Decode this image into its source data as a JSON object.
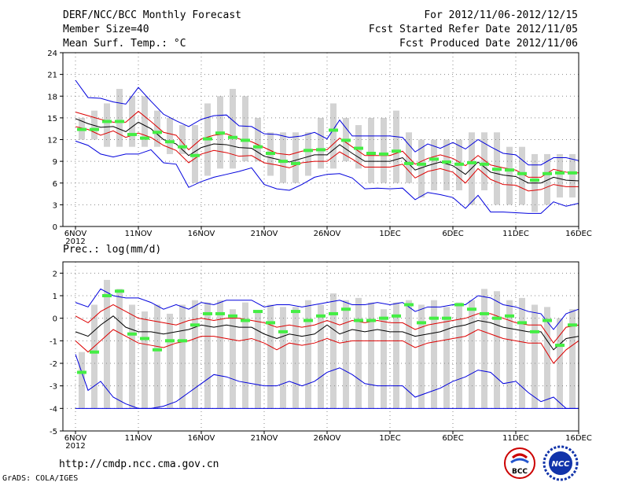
{
  "header": {
    "title": "DERF/NCC/BCC Monthly Forecast",
    "member_size": "Member Size=40",
    "variable": "Mean Surf. Temp.: °C",
    "forecast_period": "For 2012/11/06-2012/12/15",
    "fcst_started": "Fcst Started Refer Date 2012/11/05",
    "fcst_produced": "Fcst Produced Date 2012/11/06"
  },
  "footer": {
    "url": "http://cmdp.ncc.cma.gov.cn",
    "credit": "GrADS: COLA/IGES",
    "logo_left_text": "BCC",
    "logo_right_text": "NCC"
  },
  "colors": {
    "ensemble_mean": "#000000",
    "spread_inner": "#dd0000",
    "spread_outer": "#0000dd",
    "climatology_marker": "#44ee44",
    "member_bar": "#d3d3d3",
    "grid": "#888888"
  },
  "chart_data": [
    {
      "type": "line",
      "title": "Mean Surf. Temp.: °C",
      "ylabel": "°C",
      "ylim": [
        0,
        24
      ],
      "yticks": [
        0,
        3,
        6,
        9,
        12,
        15,
        18,
        21,
        24
      ],
      "ytick_labels": [
        "0",
        "3",
        "6",
        "9",
        "12",
        "15",
        "18",
        "21",
        "24"
      ],
      "x_days": 40,
      "x_tick_day": [
        0,
        5,
        10,
        15,
        20,
        25,
        30,
        35,
        40
      ],
      "x_tick_labels": [
        "6NOV",
        "11NOV",
        "16NOV",
        "21NOV",
        "26NOV",
        "1DEC",
        "6DEC",
        "11DEC",
        "16DEC"
      ],
      "x_year_label": "2012",
      "series": [
        {
          "name": "max",
          "role": "outer",
          "values": [
            20.2,
            17.8,
            17.7,
            17.2,
            16.9,
            19.2,
            17.3,
            15.5,
            14.6,
            13.8,
            14.8,
            15.3,
            15.4,
            13.9,
            13.8,
            12.8,
            12.7,
            12.3,
            12.5,
            13.0,
            12.1,
            14.7,
            12.5,
            12.5,
            12.5,
            12.5,
            12.3,
            10.3,
            11.4,
            10.8,
            11.6,
            10.7,
            12.0,
            11.0,
            10.1,
            9.9,
            8.5,
            8.5,
            9.5,
            9.5,
            9.1
          ]
        },
        {
          "name": "upper",
          "role": "inner",
          "values": [
            15.8,
            15.3,
            14.8,
            14.4,
            14.4,
            15.9,
            14.5,
            13.0,
            12.6,
            10.6,
            12.1,
            12.6,
            12.8,
            12.1,
            11.7,
            10.9,
            10.1,
            9.9,
            10.4,
            10.6,
            10.6,
            12.2,
            11.0,
            9.8,
            9.8,
            9.8,
            10.4,
            8.6,
            9.4,
            9.9,
            9.4,
            8.4,
            9.8,
            8.5,
            8.1,
            7.8,
            6.8,
            6.8,
            7.9,
            7.5,
            7.4
          ]
        },
        {
          "name": "mean",
          "role": "mean",
          "values": [
            14.9,
            14.2,
            13.7,
            13.8,
            13.1,
            14.4,
            13.5,
            12.0,
            11.4,
            9.8,
            10.9,
            11.4,
            11.3,
            10.9,
            10.8,
            9.7,
            9.3,
            8.9,
            9.4,
            9.9,
            9.9,
            11.3,
            10.1,
            9.0,
            9.0,
            9.0,
            9.5,
            7.8,
            8.4,
            8.9,
            8.4,
            7.2,
            8.9,
            7.5,
            7.1,
            6.9,
            6.0,
            6.0,
            6.8,
            6.4,
            6.3
          ]
        },
        {
          "name": "lower",
          "role": "inner",
          "values": [
            13.8,
            13.4,
            12.6,
            13.2,
            12.3,
            12.9,
            12.3,
            11.2,
            10.5,
            8.8,
            10.0,
            10.5,
            10.2,
            9.7,
            9.8,
            8.8,
            8.5,
            8.1,
            8.8,
            9.0,
            9.0,
            10.3,
            9.3,
            8.2,
            8.2,
            8.2,
            8.6,
            6.7,
            7.6,
            8.0,
            7.5,
            6.0,
            8.0,
            6.5,
            5.8,
            5.7,
            4.9,
            5.1,
            5.8,
            5.5,
            5.5
          ]
        },
        {
          "name": "min",
          "role": "outer",
          "values": [
            11.8,
            11.2,
            10.0,
            9.6,
            10.0,
            10.0,
            10.6,
            8.8,
            8.6,
            5.4,
            6.2,
            6.8,
            7.2,
            7.6,
            8.1,
            5.8,
            5.2,
            5.0,
            5.8,
            6.8,
            7.2,
            7.3,
            6.7,
            5.2,
            5.3,
            5.2,
            5.3,
            3.7,
            4.7,
            4.4,
            4.0,
            2.5,
            4.3,
            2.0,
            2.0,
            1.9,
            1.8,
            1.8,
            3.4,
            2.8,
            3.2
          ]
        }
      ],
      "member_bars": {
        "low": [
          12,
          12,
          11,
          11,
          11,
          11,
          11,
          10,
          10,
          6,
          7,
          8,
          8,
          9,
          9,
          7,
          6,
          6,
          7,
          8,
          8,
          9,
          8,
          6,
          6,
          6,
          6,
          4,
          5,
          5,
          5,
          3,
          5,
          3,
          3,
          3,
          2,
          3,
          4,
          4
        ],
        "high": [
          15,
          16,
          17,
          19,
          18,
          18,
          16,
          15,
          14,
          14,
          17,
          18,
          19,
          18,
          15,
          13,
          13,
          13,
          13,
          15,
          17,
          15,
          14,
          15,
          15,
          16,
          13,
          12,
          12,
          12,
          12,
          13,
          13,
          13,
          11,
          11,
          10,
          10,
          10,
          10
        ]
      },
      "climatology": [
        13.4,
        13.4,
        14.5,
        14.5,
        12.7,
        12.2,
        13.0,
        11.7,
        11.0,
        9.8,
        12.1,
        12.9,
        12.3,
        11.9,
        11.0,
        10.1,
        9.0,
        8.7,
        10.5,
        10.6,
        13.3,
        11.9,
        10.8,
        10.1,
        10.0,
        10.4,
        8.7,
        8.6,
        9.3,
        8.9,
        8.6,
        8.8,
        8.6,
        7.9,
        7.8,
        7.3,
        6.4,
        7.3,
        7.4,
        7.4
      ]
    },
    {
      "type": "line",
      "title": "Prec.: log(mm/d)",
      "ylabel": "log(mm/d)",
      "ylim": [
        -5,
        2.5
      ],
      "yticks": [
        -5,
        -4,
        -3,
        -2,
        -1,
        0,
        1,
        2
      ],
      "ytick_labels": [
        "-5",
        "-4",
        "-3",
        "-2",
        "-1",
        "0",
        "1",
        "2"
      ],
      "x_days": 40,
      "x_tick_day": [
        0,
        5,
        10,
        15,
        20,
        25,
        30,
        35,
        40
      ],
      "x_tick_labels": [
        "6NOV",
        "11NOV",
        "16NOV",
        "21NOV",
        "26NOV",
        "1DEC",
        "6DEC",
        "11DEC",
        "16DEC"
      ],
      "x_year_label": "2012",
      "series": [
        {
          "name": "max",
          "role": "outer",
          "values": [
            0.7,
            0.5,
            1.3,
            1.0,
            0.9,
            0.9,
            0.7,
            0.4,
            0.6,
            0.4,
            0.7,
            0.6,
            0.8,
            0.8,
            0.8,
            0.5,
            0.6,
            0.6,
            0.5,
            0.6,
            0.7,
            0.8,
            0.6,
            0.6,
            0.7,
            0.6,
            0.7,
            0.3,
            0.5,
            0.5,
            0.6,
            0.6,
            1.0,
            0.9,
            0.6,
            0.5,
            0.3,
            0.2,
            -0.5,
            0.2,
            0.4
          ]
        },
        {
          "name": "upper",
          "role": "inner",
          "values": [
            0.1,
            -0.2,
            0.3,
            0.6,
            0.3,
            0.0,
            -0.1,
            -0.2,
            -0.3,
            -0.1,
            0.0,
            -0.1,
            0.0,
            0.0,
            -0.1,
            -0.2,
            -0.4,
            -0.3,
            -0.4,
            -0.3,
            -0.1,
            -0.3,
            -0.1,
            -0.2,
            -0.1,
            -0.2,
            -0.2,
            -0.5,
            -0.3,
            -0.2,
            -0.1,
            0.0,
            0.2,
            0.2,
            0.0,
            -0.2,
            -0.3,
            -0.3,
            -1.1,
            -0.4,
            -0.3
          ]
        },
        {
          "name": "mean",
          "role": "mean",
          "values": [
            -0.6,
            -0.8,
            -0.3,
            0.1,
            -0.4,
            -0.6,
            -0.6,
            -0.7,
            -0.6,
            -0.5,
            -0.3,
            -0.4,
            -0.3,
            -0.4,
            -0.4,
            -0.7,
            -0.9,
            -0.7,
            -0.8,
            -0.7,
            -0.3,
            -0.7,
            -0.5,
            -0.6,
            -0.5,
            -0.6,
            -0.6,
            -0.8,
            -0.7,
            -0.6,
            -0.4,
            -0.3,
            -0.1,
            -0.2,
            -0.4,
            -0.5,
            -0.6,
            -0.6,
            -1.4,
            -0.9,
            -0.8
          ]
        },
        {
          "name": "lower",
          "role": "inner",
          "values": [
            -1.0,
            -1.5,
            -1.0,
            -0.5,
            -0.8,
            -1.1,
            -1.2,
            -1.3,
            -1.1,
            -1.0,
            -0.8,
            -0.8,
            -0.9,
            -1.0,
            -0.9,
            -1.1,
            -1.4,
            -1.1,
            -1.2,
            -1.1,
            -0.9,
            -1.1,
            -1.0,
            -1.0,
            -1.0,
            -1.0,
            -1.0,
            -1.3,
            -1.1,
            -1.0,
            -0.9,
            -0.8,
            -0.5,
            -0.7,
            -0.9,
            -1.0,
            -1.1,
            -1.1,
            -2.0,
            -1.4,
            -1.0
          ]
        },
        {
          "name": "min",
          "role": "outer",
          "values": [
            -1.6,
            -3.2,
            -2.8,
            -3.5,
            -3.8,
            -4.0,
            -4.0,
            -3.9,
            -3.7,
            -3.3,
            -2.9,
            -2.5,
            -2.6,
            -2.8,
            -2.9,
            -3.0,
            -3.0,
            -2.8,
            -3.0,
            -2.8,
            -2.4,
            -2.2,
            -2.5,
            -2.9,
            -3.0,
            -3.0,
            -3.0,
            -3.5,
            -3.3,
            -3.1,
            -2.8,
            -2.6,
            -2.3,
            -2.4,
            -2.9,
            -2.8,
            -3.3,
            -3.7,
            -3.5,
            -4.0,
            -4.0
          ]
        },
        {
          "name": "bottom",
          "role": "outer",
          "values": [
            -4.0,
            -4.0,
            -4.0,
            -4.0,
            -4.0,
            -4.0,
            -4.0,
            -4.0,
            -4.0,
            -4.0,
            -4.0,
            -4.0,
            -4.0,
            -4.0,
            -4.0,
            -4.0,
            -4.0,
            -4.0,
            -4.0,
            -4.0,
            -4.0,
            -4.0,
            -4.0,
            -4.0,
            -4.0,
            -4.0,
            -4.0,
            -4.0,
            -4.0,
            -4.0,
            -4.0,
            -4.0,
            -4.0,
            -4.0,
            -4.0,
            -4.0,
            -4.0,
            -4.0,
            -4.0,
            -4.0,
            -4.0
          ]
        }
      ],
      "member_bars": {
        "low": [
          -4,
          -4,
          -4,
          -4,
          -4,
          -4,
          -4,
          -4,
          -4,
          -4,
          -4,
          -4,
          -4,
          -4,
          -4,
          -4,
          -4,
          -4,
          -4,
          -4,
          -4,
          -4,
          -4,
          -4,
          -4,
          -4,
          -4,
          -4,
          -4,
          -4,
          -4,
          -4,
          -4,
          -4,
          -4,
          -4,
          -4,
          -4,
          -4,
          -4
        ],
        "high": [
          -1.5,
          0.6,
          1.7,
          1.3,
          0.6,
          0.3,
          0.6,
          0.2,
          0.6,
          0.8,
          0.7,
          0.8,
          0.4,
          0.7,
          0.3,
          0.6,
          0.5,
          0.5,
          0.8,
          0.6,
          1.1,
          0.8,
          0.9,
          0.7,
          0.4,
          0.7,
          0.8,
          0.6,
          0.8,
          0.5,
          0.7,
          0.8,
          1.3,
          1.2,
          0.8,
          0.9,
          0.6,
          0.5,
          0.0,
          0.4
        ]
      },
      "climatology": [
        -2.4,
        -1.5,
        1.0,
        1.2,
        -0.7,
        -0.9,
        -1.4,
        -1.0,
        -1.0,
        -0.3,
        0.2,
        0.2,
        0.1,
        -0.1,
        0.3,
        -0.2,
        -0.6,
        0.3,
        -0.1,
        0.1,
        0.2,
        0.4,
        -0.1,
        -0.1,
        -0.0,
        0.1,
        0.6,
        -0.2,
        -0.0,
        0.0,
        0.6,
        0.4,
        0.2,
        -0.0,
        0.1,
        -0.2,
        -0.6,
        -0.1,
        -1.2,
        -0.3
      ]
    }
  ]
}
